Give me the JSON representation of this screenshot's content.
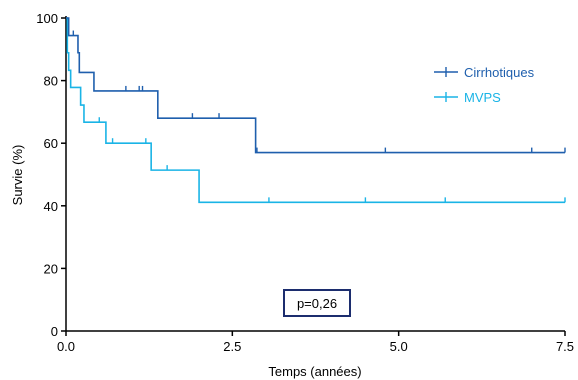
{
  "chart_data": {
    "type": "line",
    "subtype": "kaplan-meier",
    "xlabel": "Temps (années)",
    "ylabel": "Survie (%)",
    "xlim": [
      0,
      7.5
    ],
    "ylim": [
      0,
      100
    ],
    "xticks": [
      0,
      2.5,
      5.0,
      7.5
    ],
    "xtick_labels": [
      "0.0",
      "2.5",
      "5.0",
      "7.5"
    ],
    "yticks": [
      0,
      20,
      40,
      60,
      80,
      100
    ],
    "ytick_labels": [
      "0",
      "20",
      "40",
      "60",
      "80",
      "100"
    ],
    "legend_position": "top-right",
    "annotation": "p=0,26",
    "series": [
      {
        "name": "Cirrhotiques",
        "color": "#1f5fad",
        "steps": [
          [
            0,
            100
          ],
          [
            0.04,
            94.4
          ],
          [
            0.18,
            88.9
          ],
          [
            0.2,
            82.6
          ],
          [
            0.42,
            76.7
          ],
          [
            1.38,
            68.0
          ],
          [
            2.85,
            57.0
          ],
          [
            7.5,
            57.0
          ]
        ],
        "censored": [
          [
            0.11,
            94.4
          ],
          [
            0.9,
            76.7
          ],
          [
            1.1,
            76.7
          ],
          [
            1.15,
            76.7
          ],
          [
            1.9,
            68.0
          ],
          [
            2.3,
            68.0
          ],
          [
            2.87,
            57.0
          ],
          [
            4.8,
            57.0
          ],
          [
            7.0,
            57.0
          ],
          [
            7.5,
            57.0
          ]
        ]
      },
      {
        "name": "MVPS",
        "color": "#1ab4e6",
        "steps": [
          [
            0,
            100
          ],
          [
            0.02,
            88.9
          ],
          [
            0.04,
            83.3
          ],
          [
            0.07,
            77.8
          ],
          [
            0.22,
            72.2
          ],
          [
            0.27,
            66.7
          ],
          [
            0.6,
            60.0
          ],
          [
            1.28,
            51.4
          ],
          [
            2.0,
            41.1
          ],
          [
            7.5,
            41.1
          ]
        ],
        "censored": [
          [
            0.5,
            66.7
          ],
          [
            0.7,
            60.0
          ],
          [
            1.2,
            60.0
          ],
          [
            1.52,
            51.4
          ],
          [
            3.05,
            41.1
          ],
          [
            4.5,
            41.1
          ],
          [
            5.7,
            41.1
          ],
          [
            7.5,
            41.1
          ]
        ]
      }
    ]
  }
}
